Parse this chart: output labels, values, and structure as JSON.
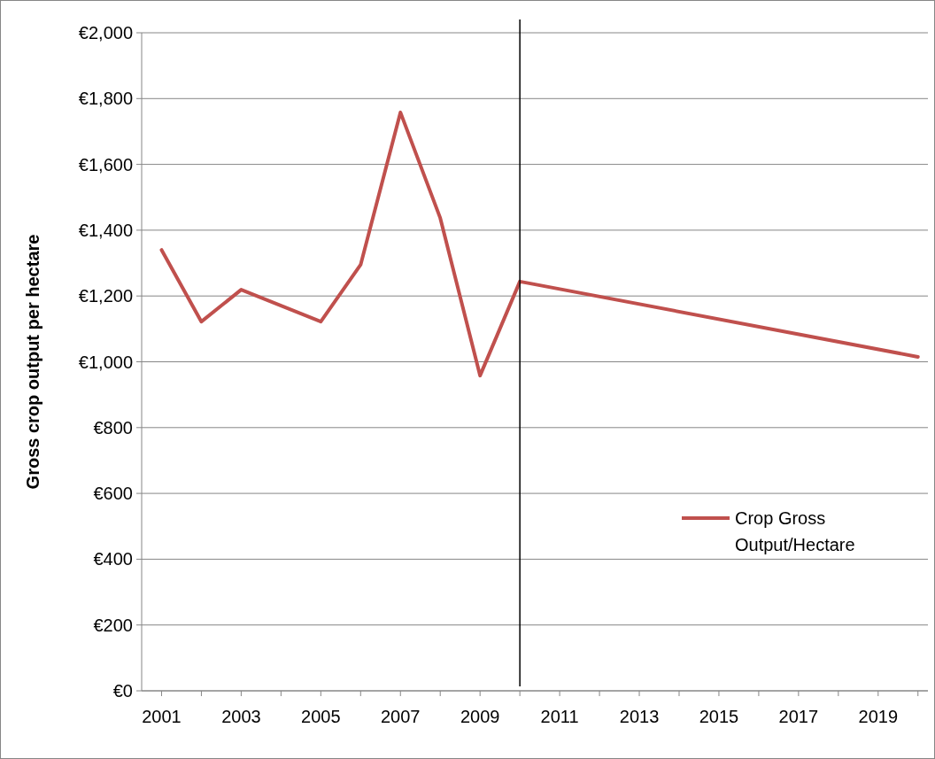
{
  "chart_data": {
    "type": "line",
    "ylabel": "Gross crop output per hectare",
    "x": [
      2001,
      2002,
      2003,
      2004,
      2005,
      2006,
      2007,
      2008,
      2009,
      2010,
      2011,
      2012,
      2013,
      2014,
      2015,
      2016,
      2017,
      2018,
      2019,
      2020
    ],
    "series": [
      {
        "name": "Crop Gross Output/Hectare",
        "color": "#c0504d",
        "values": [
          1340,
          1122,
          1219,
          null,
          1122,
          1295,
          1758,
          1437,
          958,
          1244,
          null,
          null,
          null,
          null,
          null,
          null,
          null,
          null,
          null,
          1015
        ]
      }
    ],
    "xlim": [
      2000.5,
      2020.25
    ],
    "xticks": [
      2001,
      {
        "value": 2002,
        "label": null
      },
      2003,
      {
        "value": 2004,
        "label": null
      },
      2005,
      {
        "value": 2006,
        "label": null
      },
      2007,
      {
        "value": 2008,
        "label": null
      },
      2009,
      {
        "value": 2010,
        "label": null
      },
      2011,
      {
        "value": 2012,
        "label": null
      },
      2013,
      {
        "value": 2014,
        "label": null
      },
      2015,
      {
        "value": 2016,
        "label": null
      },
      2017,
      {
        "value": 2018,
        "label": null
      },
      2019,
      {
        "value": 2020,
        "label": null
      }
    ],
    "ylim": [
      0,
      2000
    ],
    "yticks": [
      {
        "value": 0,
        "label": "€0"
      },
      {
        "value": 200,
        "label": "€200"
      },
      {
        "value": 400,
        "label": "€400"
      },
      {
        "value": 600,
        "label": "€600"
      },
      {
        "value": 800,
        "label": "€800"
      },
      {
        "value": 1000,
        "label": "€1,000"
      },
      {
        "value": 1200,
        "label": "€1,200"
      },
      {
        "value": 1400,
        "label": "€1,400"
      },
      {
        "value": 1600,
        "label": "€1,600"
      },
      {
        "value": 1800,
        "label": "€1,800"
      },
      {
        "value": 2000,
        "label": "€2,000"
      }
    ],
    "ref_lines": [
      {
        "axis": "x",
        "value": 2010,
        "color": "#000000"
      }
    ],
    "grid": "y",
    "legend": "right",
    "marker": "none",
    "line_style": "solid"
  }
}
